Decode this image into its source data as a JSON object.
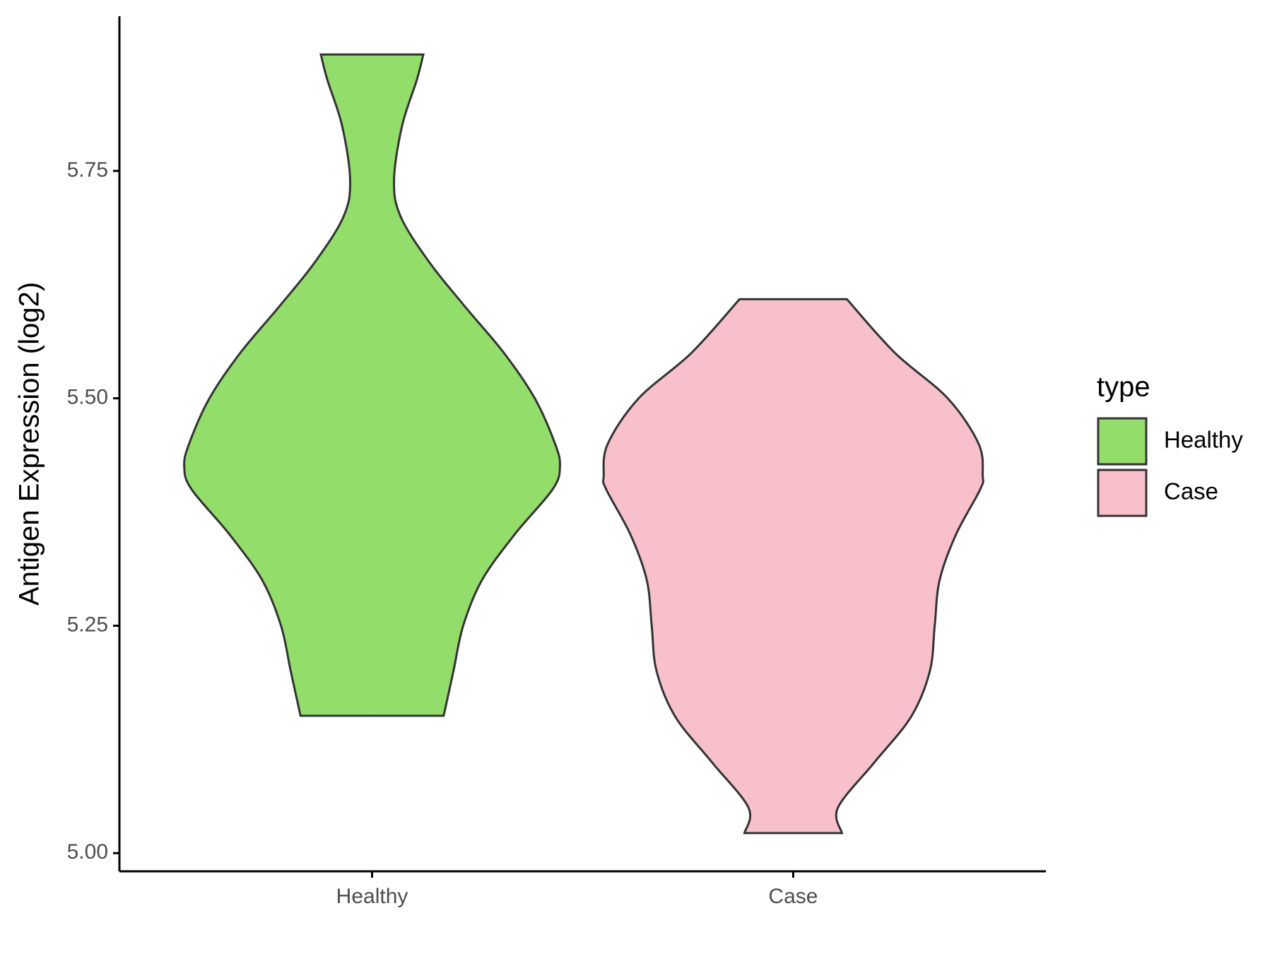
{
  "chart_data": {
    "type": "violin",
    "y_label": "Antigen Expression (log2)",
    "categories": [
      "Healthy",
      "Case"
    ],
    "legend_title": "type",
    "legend": "right",
    "ylim": [
      4.98,
      5.92
    ],
    "yticks": [
      {
        "value": 5,
        "label": "5.00"
      },
      {
        "value": 5.25,
        "label": "5.25"
      },
      {
        "value": 5.5,
        "label": "5.50"
      },
      {
        "value": 5.75,
        "label": "5.75"
      }
    ],
    "series": [
      {
        "name": "Healthy",
        "color": "#93dd6b",
        "y": [
          5.878,
          5.85,
          5.8,
          5.74,
          5.7,
          5.65,
          5.6,
          5.55,
          5.5,
          5.45,
          5.425,
          5.4,
          5.35,
          5.3,
          5.25,
          5.2,
          5.151
        ],
        "widths": [
          63,
          55,
          37,
          27,
          35,
          70,
          115,
          162,
          200,
          225,
          231,
          222,
          175,
          135,
          112,
          100,
          88
        ]
      },
      {
        "name": "Case",
        "color": "#f7c0cb",
        "y": [
          5.609,
          5.55,
          5.5,
          5.45,
          5.415,
          5.4,
          5.35,
          5.3,
          5.25,
          5.2,
          5.15,
          5.1,
          5.05,
          5.022
        ],
        "widths": [
          66,
          125,
          190,
          228,
          233,
          230,
          200,
          180,
          174,
          168,
          145,
          100,
          55,
          60
        ]
      }
    ]
  }
}
